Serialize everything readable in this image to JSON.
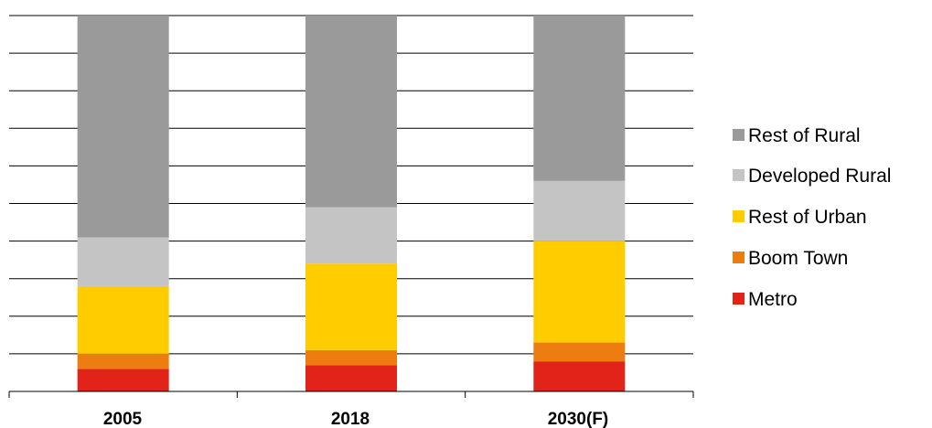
{
  "chart_data": {
    "type": "bar",
    "stacked": true,
    "normalized": true,
    "categories": [
      "2005",
      "2018",
      "2030(F)"
    ],
    "ylim": [
      0,
      100
    ],
    "grid": true,
    "legend_position": "right",
    "series": [
      {
        "name": "Metro",
        "color": "#e2231a",
        "values": [
          6,
          7,
          8
        ]
      },
      {
        "name": "Boom Town",
        "color": "#ee7d11",
        "values": [
          4,
          4,
          5
        ]
      },
      {
        "name": "Rest of Urban",
        "color": "#ffcc00",
        "values": [
          18,
          23,
          27
        ]
      },
      {
        "name": "Developed Rural",
        "color": "#c4c4c4",
        "values": [
          13,
          15,
          16
        ]
      },
      {
        "name": "Rest of Rural",
        "color": "#9a9a9a",
        "values": [
          59,
          51,
          44
        ]
      }
    ]
  }
}
